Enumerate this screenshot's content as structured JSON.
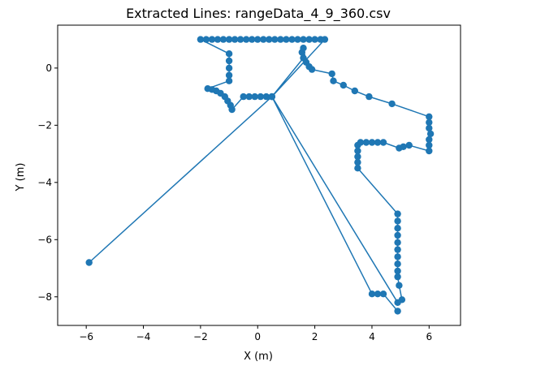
{
  "chart_data": {
    "type": "scatter",
    "title": "Extracted Lines: rangeData_4_9_360.csv",
    "xlabel": "X (m)",
    "ylabel": "Y (m)",
    "xlim": [
      -7,
      7.1
    ],
    "ylim": [
      -9,
      1.5
    ],
    "xticks": [
      -6,
      -4,
      -2,
      0,
      2,
      4,
      6
    ],
    "yticks": [
      -8,
      -6,
      -4,
      -2,
      0
    ],
    "grid": false,
    "legend": "none",
    "series": [
      {
        "color": "#1f77b4",
        "marker": "circle",
        "connected": true,
        "points": [
          [
            -5.9,
            -6.8
          ],
          [
            0.5,
            -1.0
          ],
          [
            0.3,
            -1.0
          ],
          [
            0.1,
            -1.0
          ],
          [
            -0.1,
            -1.0
          ],
          [
            -0.3,
            -1.0
          ],
          [
            -0.5,
            -1.0
          ],
          [
            -0.9,
            -1.45
          ],
          [
            -0.95,
            -1.3
          ],
          [
            -1.05,
            -1.15
          ],
          [
            -1.15,
            -1.0
          ],
          [
            -1.3,
            -0.88
          ],
          [
            -1.45,
            -0.8
          ],
          [
            -1.6,
            -0.75
          ],
          [
            -1.75,
            -0.72
          ],
          [
            -1.0,
            -0.45
          ],
          [
            -1.0,
            -0.25
          ],
          [
            -1.0,
            0.0
          ],
          [
            -1.0,
            0.25
          ],
          [
            -1.0,
            0.5
          ],
          [
            -2.0,
            1.0
          ],
          [
            -1.8,
            1.0
          ],
          [
            -1.6,
            1.0
          ],
          [
            -1.4,
            1.0
          ],
          [
            -1.2,
            1.0
          ],
          [
            -1.0,
            1.0
          ],
          [
            -0.8,
            1.0
          ],
          [
            -0.6,
            1.0
          ],
          [
            -0.4,
            1.0
          ],
          [
            -0.2,
            1.0
          ],
          [
            0.0,
            1.0
          ],
          [
            0.2,
            1.0
          ],
          [
            0.4,
            1.0
          ],
          [
            0.6,
            1.0
          ],
          [
            0.8,
            1.0
          ],
          [
            1.0,
            1.0
          ],
          [
            1.2,
            1.0
          ],
          [
            1.4,
            1.0
          ],
          [
            1.6,
            1.0
          ],
          [
            1.8,
            1.0
          ],
          [
            2.0,
            1.0
          ],
          [
            2.2,
            1.0
          ],
          [
            2.35,
            1.0
          ],
          [
            0.5,
            -1.0
          ],
          [
            1.6,
            0.35
          ],
          [
            1.55,
            0.55
          ],
          [
            1.6,
            0.7
          ],
          [
            1.7,
            0.2
          ],
          [
            1.8,
            0.05
          ],
          [
            1.9,
            -0.05
          ],
          [
            2.6,
            -0.2
          ],
          [
            2.65,
            -0.45
          ],
          [
            3.0,
            -0.6
          ],
          [
            3.4,
            -0.8
          ],
          [
            3.9,
            -1.0
          ],
          [
            4.7,
            -1.25
          ],
          [
            6.0,
            -1.7
          ],
          [
            6.0,
            -1.9
          ],
          [
            6.0,
            -2.1
          ],
          [
            6.05,
            -2.3
          ],
          [
            6.0,
            -2.5
          ],
          [
            6.0,
            -2.7
          ],
          [
            6.0,
            -2.9
          ],
          [
            5.3,
            -2.7
          ],
          [
            5.1,
            -2.75
          ],
          [
            4.95,
            -2.8
          ],
          [
            4.4,
            -2.6
          ],
          [
            4.2,
            -2.6
          ],
          [
            4.0,
            -2.6
          ],
          [
            3.8,
            -2.6
          ],
          [
            3.6,
            -2.6
          ],
          [
            3.5,
            -2.7
          ],
          [
            3.5,
            -2.9
          ],
          [
            3.5,
            -3.1
          ],
          [
            3.5,
            -3.3
          ],
          [
            3.5,
            -3.5
          ],
          [
            4.9,
            -5.1
          ],
          [
            4.9,
            -5.35
          ],
          [
            4.9,
            -5.6
          ],
          [
            4.9,
            -5.85
          ],
          [
            4.9,
            -6.1
          ],
          [
            4.9,
            -6.35
          ],
          [
            4.9,
            -6.6
          ],
          [
            4.9,
            -6.85
          ],
          [
            4.9,
            -7.1
          ],
          [
            4.9,
            -7.3
          ],
          [
            4.95,
            -7.6
          ],
          [
            5.05,
            -8.1
          ],
          [
            4.9,
            -8.2
          ],
          [
            0.5,
            -1.0
          ],
          [
            4.0,
            -7.9
          ],
          [
            4.2,
            -7.9
          ],
          [
            4.4,
            -7.9
          ],
          [
            4.9,
            -8.5
          ]
        ]
      }
    ]
  }
}
